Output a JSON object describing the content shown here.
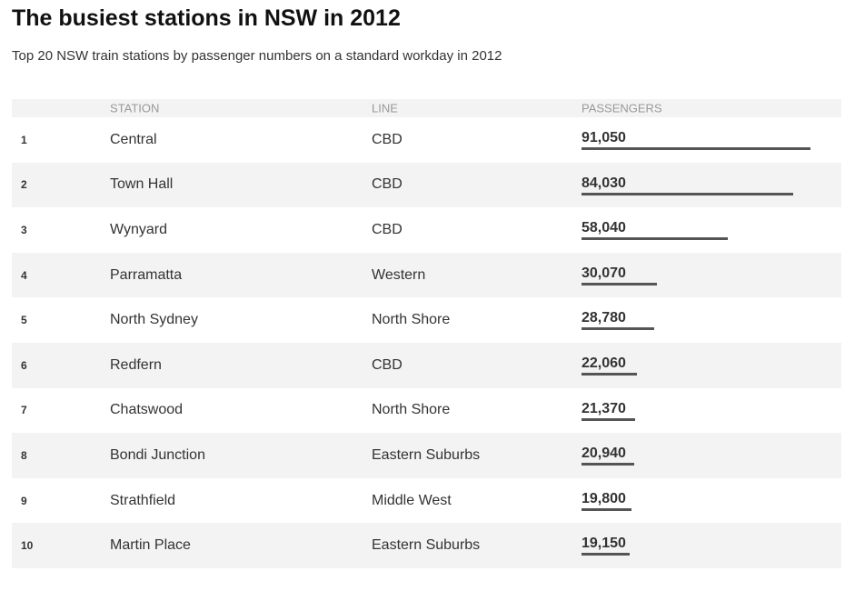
{
  "header": {
    "title": "The busiest stations in NSW in 2012",
    "subtitle": "Top 20 NSW train stations by passenger numbers on a standard workday in 2012"
  },
  "table": {
    "columns": [
      "STATION",
      "LINE",
      "PASSENGERS"
    ],
    "rows": [
      {
        "rank": 1,
        "station": "Central",
        "line": "CBD",
        "passengers": 91050,
        "passengers_label": "91,050"
      },
      {
        "rank": 2,
        "station": "Town Hall",
        "line": "CBD",
        "passengers": 84030,
        "passengers_label": "84,030"
      },
      {
        "rank": 3,
        "station": "Wynyard",
        "line": "CBD",
        "passengers": 58040,
        "passengers_label": "58,040"
      },
      {
        "rank": 4,
        "station": "Parramatta",
        "line": "Western",
        "passengers": 30070,
        "passengers_label": "30,070"
      },
      {
        "rank": 5,
        "station": "North Sydney",
        "line": "North Shore",
        "passengers": 28780,
        "passengers_label": "28,780"
      },
      {
        "rank": 6,
        "station": "Redfern",
        "line": "CBD",
        "passengers": 22060,
        "passengers_label": "22,060"
      },
      {
        "rank": 7,
        "station": "Chatswood",
        "line": "North Shore",
        "passengers": 21370,
        "passengers_label": "21,370"
      },
      {
        "rank": 8,
        "station": "Bondi Junction",
        "line": "Eastern Suburbs",
        "passengers": 20940,
        "passengers_label": "20,940"
      },
      {
        "rank": 9,
        "station": "Strathfield",
        "line": "Middle West",
        "passengers": 19800,
        "passengers_label": "19,800"
      },
      {
        "rank": 10,
        "station": "Martin Place",
        "line": "Eastern Suburbs",
        "passengers": 19150,
        "passengers_label": "19,150"
      }
    ]
  }
}
